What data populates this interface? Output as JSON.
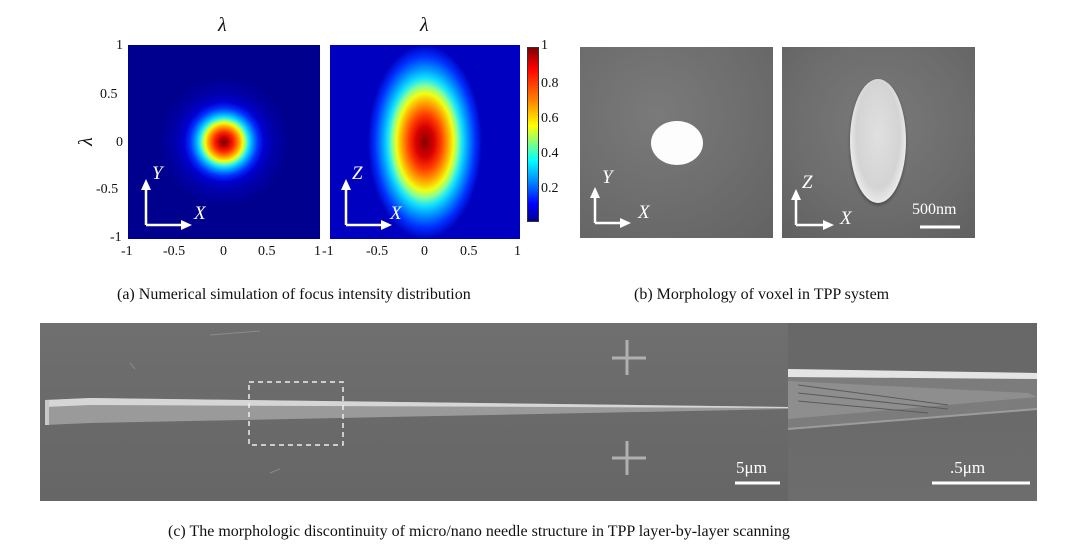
{
  "panel_a": {
    "plot1_title": "λ",
    "plot2_title": "λ",
    "y_axis_label": "λ",
    "y_ticks": [
      "1",
      "0.5",
      "0",
      "-0.5",
      "-1"
    ],
    "x_ticks_plot1": [
      "-1",
      "-0.5",
      "0",
      "0.5",
      "1"
    ],
    "x_ticks_plot2": [
      "-1",
      "-0.5",
      "0",
      "0.5",
      "1"
    ],
    "colorbar_ticks": [
      "1",
      "0.8",
      "0.6",
      "0.4",
      "0.2"
    ],
    "plot1_axes": {
      "vertical": "Y",
      "horizontal": "X"
    },
    "plot2_axes": {
      "vertical": "Z",
      "horizontal": "X"
    },
    "caption": "(a) Numerical simulation of focus intensity distribution"
  },
  "panel_b": {
    "img1_axes": {
      "vertical": "Y",
      "horizontal": "X"
    },
    "img2_axes": {
      "vertical": "Z",
      "horizontal": "X"
    },
    "scale_bar": "500nm",
    "caption": "(b) Morphology of voxel in TPP system"
  },
  "panel_c": {
    "main_scale_bar": "5μm",
    "inset_scale_bar": ".5μm",
    "caption": "(c) The morphologic discontinuity of micro/nano needle structure in TPP layer-by-layer scanning"
  },
  "colors": {
    "jet_background": "#00008f",
    "sem_gray": "#6e6e6e"
  }
}
